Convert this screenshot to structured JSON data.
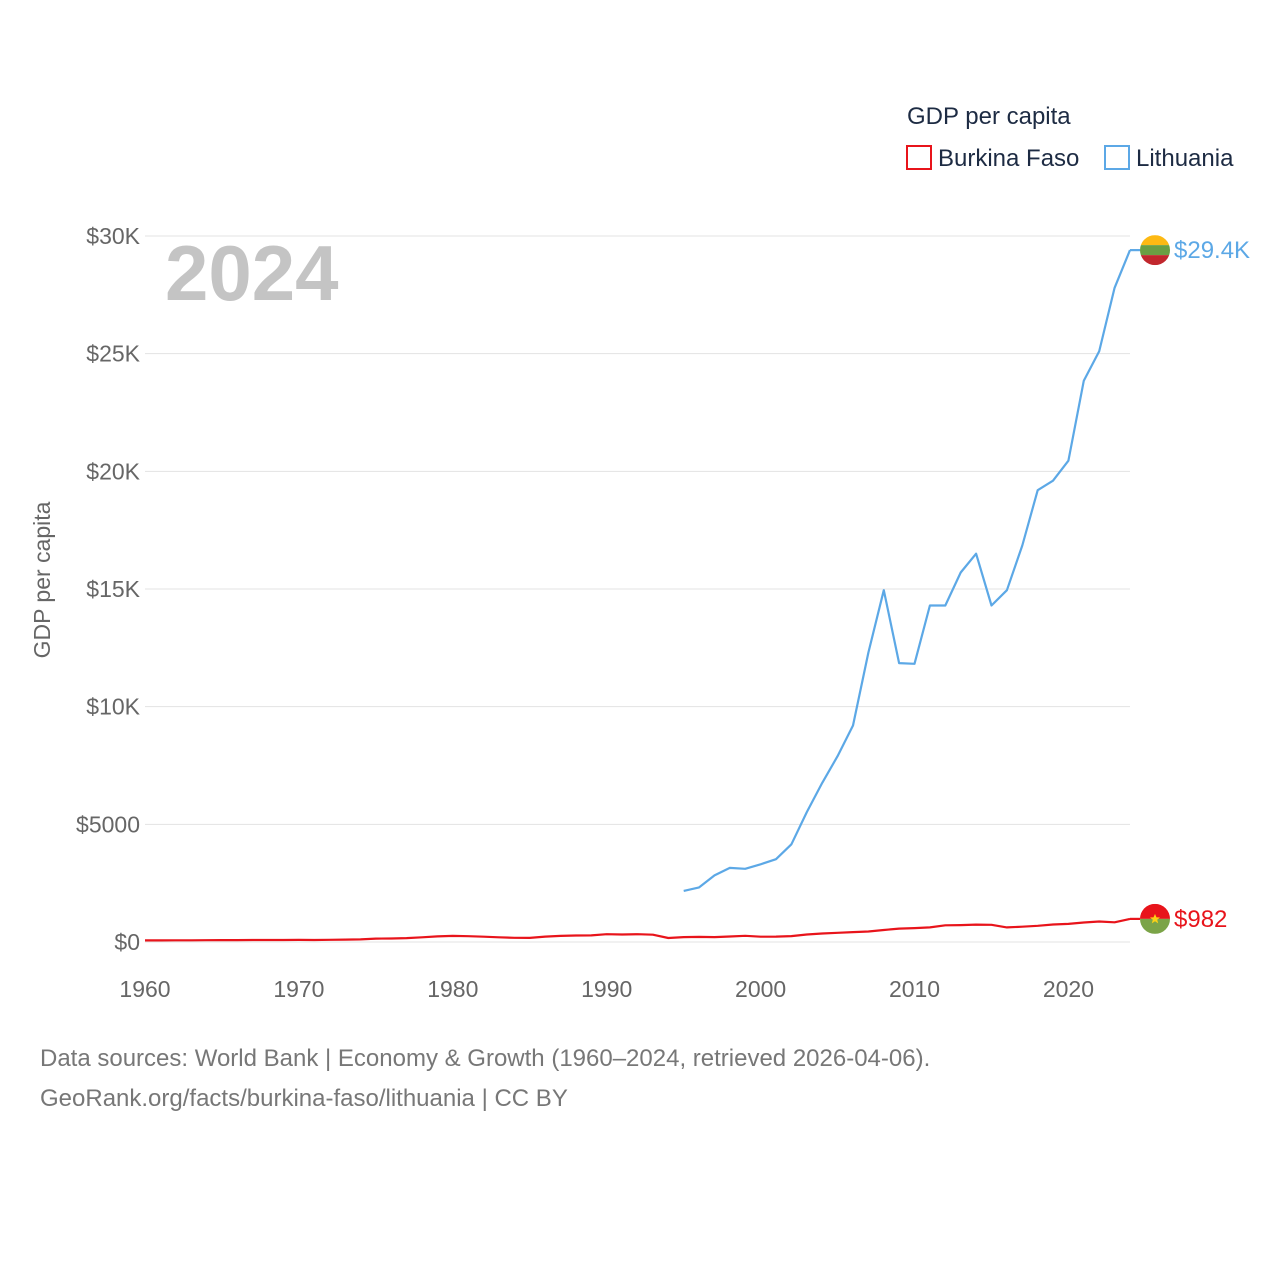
{
  "chart_data": {
    "type": "line",
    "title": "GDP per capita",
    "ylabel": "GDP per capita",
    "xlabel": "",
    "year_label": "2024",
    "xlim": [
      1960,
      2024
    ],
    "ylim": [
      0,
      30000
    ],
    "x_ticks": [
      1960,
      1970,
      1980,
      1990,
      2000,
      2010,
      2020
    ],
    "x_tick_labels": [
      "1960",
      "1970",
      "1980",
      "1990",
      "2000",
      "2010",
      "2020"
    ],
    "y_ticks": [
      0,
      5000,
      10000,
      15000,
      20000,
      25000,
      30000
    ],
    "y_tick_labels": [
      "$0",
      "$5000",
      "$10K",
      "$15K",
      "$20K",
      "$25K",
      "$30K"
    ],
    "grid": true,
    "legend_position": "top-right",
    "series": [
      {
        "name": "Burkina Faso",
        "color": "#e8141b",
        "end_label": "$982",
        "flag_icon": "burkina-faso-flag-icon",
        "x": [
          1960,
          1961,
          1962,
          1963,
          1964,
          1965,
          1966,
          1967,
          1968,
          1969,
          1970,
          1971,
          1972,
          1973,
          1974,
          1975,
          1976,
          1977,
          1978,
          1979,
          1980,
          1981,
          1982,
          1983,
          1984,
          1985,
          1986,
          1987,
          1988,
          1989,
          1990,
          1991,
          1992,
          1993,
          1994,
          1995,
          1996,
          1997,
          1998,
          1999,
          2000,
          2001,
          2002,
          2003,
          2004,
          2005,
          2006,
          2007,
          2008,
          2009,
          2010,
          2011,
          2012,
          2013,
          2014,
          2015,
          2016,
          2017,
          2018,
          2019,
          2020,
          2021,
          2022,
          2023,
          2024
        ],
        "values": [
          68,
          70,
          72,
          74,
          77,
          80,
          81,
          83,
          85,
          87,
          88,
          86,
          95,
          103,
          112,
          145,
          150,
          165,
          200,
          240,
          260,
          245,
          225,
          200,
          180,
          175,
          230,
          260,
          275,
          280,
          330,
          320,
          330,
          310,
          170,
          210,
          215,
          210,
          235,
          265,
          225,
          230,
          250,
          320,
          360,
          390,
          420,
          445,
          510,
          570,
          590,
          620,
          710,
          720,
          740,
          730,
          620,
          650,
          690,
          745,
          770,
          830,
          870,
          835,
          982
        ]
      },
      {
        "name": "Lithuania",
        "color": "#5ca8e6",
        "end_label": "$29.4K",
        "flag_icon": "lithuania-flag-icon",
        "x": [
          1995,
          1996,
          1997,
          1998,
          1999,
          2000,
          2001,
          2002,
          2003,
          2004,
          2005,
          2006,
          2007,
          2008,
          2009,
          2010,
          2011,
          2012,
          2013,
          2014,
          2015,
          2016,
          2017,
          2018,
          2019,
          2020,
          2021,
          2022,
          2023,
          2024
        ],
        "values": [
          2170,
          2320,
          2830,
          3150,
          3110,
          3300,
          3520,
          4150,
          5520,
          6760,
          7900,
          9200,
          12300,
          14950,
          11850,
          11820,
          14300,
          14300,
          15700,
          16500,
          14300,
          14950,
          16850,
          19200,
          19600,
          20450,
          23850,
          25100,
          27800,
          29400
        ]
      }
    ]
  },
  "footer": {
    "line1": "Data sources: World Bank | Economy & Growth (1960–2024, retrieved 2026-04-06).",
    "line2": "GeoRank.org/facts/burkina-faso/lithuania | CC BY"
  }
}
